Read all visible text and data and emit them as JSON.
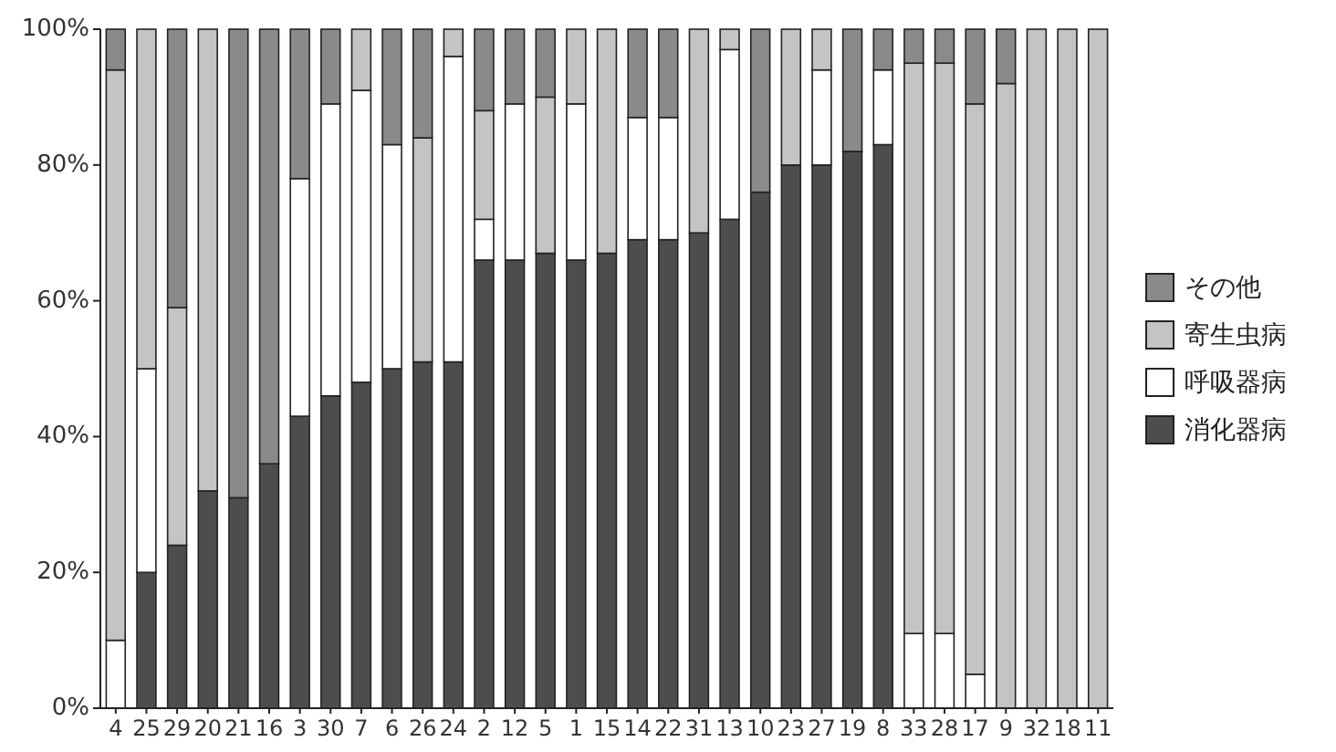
{
  "chart_data": {
    "type": "bar",
    "stacked": true,
    "categories": [
      "4",
      "25",
      "29",
      "20",
      "21",
      "16",
      "3",
      "30",
      "7",
      "6",
      "26",
      "24",
      "2",
      "12",
      "5",
      "1",
      "15",
      "14",
      "22",
      "31",
      "13",
      "10",
      "23",
      "27",
      "19",
      "8",
      "33",
      "28",
      "17",
      "9",
      "32",
      "18",
      "11"
    ],
    "series": [
      {
        "name": "消化器病",
        "color": "#4d4d4d",
        "values": [
          0,
          20,
          24,
          32,
          31,
          36,
          43,
          46,
          48,
          50,
          51,
          51,
          66,
          66,
          67,
          66,
          67,
          69,
          69,
          70,
          72,
          76,
          80,
          80,
          82,
          83,
          0,
          0,
          0,
          0,
          0,
          0,
          0
        ]
      },
      {
        "name": "呼吸器病",
        "color": "#ffffff",
        "values": [
          10,
          30,
          0,
          0,
          0,
          0,
          35,
          43,
          43,
          33,
          0,
          45,
          6,
          23,
          0,
          23,
          0,
          18,
          18,
          0,
          25,
          0,
          0,
          14,
          0,
          11,
          11,
          11,
          5,
          0,
          0,
          0,
          0
        ]
      },
      {
        "name": "寄生虫病",
        "color": "#c4c4c4",
        "values": [
          84,
          50,
          35,
          68,
          0,
          0,
          0,
          0,
          9,
          0,
          33,
          4,
          16,
          0,
          23,
          11,
          33,
          0,
          0,
          30,
          3,
          0,
          20,
          6,
          0,
          0,
          84,
          84,
          84,
          92,
          100,
          100,
          100
        ]
      },
      {
        "name": "その他",
        "color": "#8a8a8a",
        "values": [
          6,
          0,
          41,
          0,
          69,
          64,
          22,
          11,
          0,
          17,
          16,
          0,
          12,
          11,
          10,
          0,
          0,
          13,
          13,
          0,
          0,
          24,
          0,
          0,
          18,
          6,
          5,
          5,
          11,
          8,
          0,
          0,
          0
        ]
      }
    ],
    "ylim": [
      0,
      100
    ],
    "yticks": [
      {
        "value": 0,
        "label": "0%"
      },
      {
        "value": 20,
        "label": "20%"
      },
      {
        "value": 40,
        "label": "40%"
      },
      {
        "value": 60,
        "label": "60%"
      },
      {
        "value": 80,
        "label": "80%"
      },
      {
        "value": 100,
        "label": "100%"
      }
    ],
    "legend": "right"
  }
}
